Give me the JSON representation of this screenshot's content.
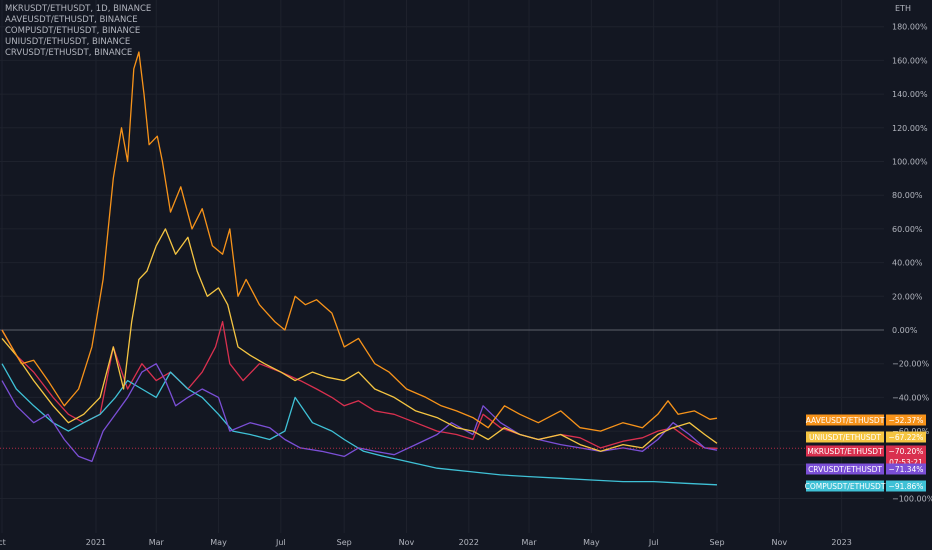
{
  "legend": {
    "lines": [
      "MKRUSDT/ETHUSDT, 1D, BINANCE",
      "AAVEUSDT/ETHUSDT, BINANCE",
      "COMPUSDT/ETHUSDT, BINANCE",
      "UNIUSDT/ETHUSDT, BINANCE",
      "CRVUSDT/ETHUSDT, BINANCE"
    ]
  },
  "chart_data": {
    "type": "line",
    "title": "MKRUSDT/ETHUSDT, 1D, BINANCE",
    "y_axis_unit": "ETH",
    "y_ticks": [
      "180.00%",
      "160.00%",
      "140.00%",
      "120.00%",
      "100.00%",
      "80.00%",
      "60.00%",
      "40.00%",
      "20.00%",
      "0.00%",
      "−20.00%",
      "−40.00%",
      "−60.00%",
      "−100.00%"
    ],
    "x_ticks": [
      "ct",
      "2021",
      "Mar",
      "May",
      "Jul",
      "Sep",
      "Nov",
      "2022",
      "Mar",
      "May",
      "Jul",
      "Sep",
      "Nov",
      "2023"
    ],
    "x_tick_dates": [
      "2020-10-01",
      "2021-01-01",
      "2021-03-01",
      "2021-05-01",
      "2021-07-01",
      "2021-09-01",
      "2021-11-01",
      "2022-01-01",
      "2022-03-01",
      "2022-05-01",
      "2022-07-01",
      "2022-09-01",
      "2022-11-01",
      "2023-01-01"
    ],
    "ylim": [
      -110,
      190
    ],
    "scale": "percent",
    "grid": true,
    "baseline": 0,
    "countdown": "07:53:21",
    "series": [
      {
        "name": "AAVEUSDT/ETHUSDT",
        "color": "#f7931a",
        "last_label": "−52.37%",
        "label_slot": 0,
        "points": [
          [
            "2020-10-01",
            0
          ],
          [
            "2020-10-20",
            -20
          ],
          [
            "2020-11-01",
            -18
          ],
          [
            "2020-11-15",
            -30
          ],
          [
            "2020-12-01",
            -45
          ],
          [
            "2020-12-15",
            -35
          ],
          [
            "2020-12-28",
            -10
          ],
          [
            "2021-01-08",
            30
          ],
          [
            "2021-01-18",
            90
          ],
          [
            "2021-01-26",
            120
          ],
          [
            "2021-02-01",
            100
          ],
          [
            "2021-02-07",
            155
          ],
          [
            "2021-02-12",
            165
          ],
          [
            "2021-02-17",
            140
          ],
          [
            "2021-02-22",
            110
          ],
          [
            "2021-03-02",
            115
          ],
          [
            "2021-03-07",
            100
          ],
          [
            "2021-03-15",
            70
          ],
          [
            "2021-03-25",
            85
          ],
          [
            "2021-04-05",
            60
          ],
          [
            "2021-04-15",
            72
          ],
          [
            "2021-04-25",
            50
          ],
          [
            "2021-05-05",
            45
          ],
          [
            "2021-05-12",
            60
          ],
          [
            "2021-05-20",
            20
          ],
          [
            "2021-05-28",
            30
          ],
          [
            "2021-06-10",
            15
          ],
          [
            "2021-06-25",
            5
          ],
          [
            "2021-07-05",
            0
          ],
          [
            "2021-07-15",
            20
          ],
          [
            "2021-07-25",
            15
          ],
          [
            "2021-08-05",
            18
          ],
          [
            "2021-08-20",
            10
          ],
          [
            "2021-09-01",
            -10
          ],
          [
            "2021-09-15",
            -5
          ],
          [
            "2021-10-01",
            -20
          ],
          [
            "2021-10-15",
            -25
          ],
          [
            "2021-11-01",
            -35
          ],
          [
            "2021-11-20",
            -40
          ],
          [
            "2021-12-05",
            -45
          ],
          [
            "2021-12-20",
            -48
          ],
          [
            "2022-01-05",
            -52
          ],
          [
            "2022-01-20",
            -58
          ],
          [
            "2022-02-05",
            -45
          ],
          [
            "2022-02-20",
            -50
          ],
          [
            "2022-03-10",
            -55
          ],
          [
            "2022-04-01",
            -48
          ],
          [
            "2022-04-20",
            -58
          ],
          [
            "2022-05-10",
            -60
          ],
          [
            "2022-06-01",
            -55
          ],
          [
            "2022-06-20",
            -58
          ],
          [
            "2022-07-05",
            -50
          ],
          [
            "2022-07-15",
            -42
          ],
          [
            "2022-07-25",
            -50
          ],
          [
            "2022-08-10",
            -48
          ],
          [
            "2022-08-25",
            -53
          ],
          [
            "2022-09-01",
            -52.37
          ]
        ]
      },
      {
        "name": "UNIUSDT/ETHUSDT",
        "color": "#f5c542",
        "last_label": "−67.22%",
        "label_slot": 1,
        "points": [
          [
            "2020-10-01",
            -5
          ],
          [
            "2020-10-15",
            -15
          ],
          [
            "2020-11-01",
            -30
          ],
          [
            "2020-11-20",
            -45
          ],
          [
            "2020-12-05",
            -55
          ],
          [
            "2020-12-20",
            -50
          ],
          [
            "2021-01-05",
            -40
          ],
          [
            "2021-01-18",
            -10
          ],
          [
            "2021-01-28",
            -35
          ],
          [
            "2021-02-05",
            5
          ],
          [
            "2021-02-12",
            30
          ],
          [
            "2021-02-20",
            35
          ],
          [
            "2021-03-01",
            50
          ],
          [
            "2021-03-10",
            60
          ],
          [
            "2021-03-20",
            45
          ],
          [
            "2021-04-01",
            55
          ],
          [
            "2021-04-10",
            35
          ],
          [
            "2021-04-20",
            20
          ],
          [
            "2021-05-01",
            25
          ],
          [
            "2021-05-10",
            15
          ],
          [
            "2021-05-20",
            -10
          ],
          [
            "2021-06-01",
            -15
          ],
          [
            "2021-06-15",
            -20
          ],
          [
            "2021-07-01",
            -25
          ],
          [
            "2021-07-15",
            -30
          ],
          [
            "2021-08-01",
            -25
          ],
          [
            "2021-08-15",
            -28
          ],
          [
            "2021-09-01",
            -30
          ],
          [
            "2021-09-15",
            -25
          ],
          [
            "2021-10-01",
            -35
          ],
          [
            "2021-10-20",
            -40
          ],
          [
            "2021-11-10",
            -48
          ],
          [
            "2021-12-01",
            -52
          ],
          [
            "2021-12-20",
            -58
          ],
          [
            "2022-01-05",
            -60
          ],
          [
            "2022-01-20",
            -65
          ],
          [
            "2022-02-05",
            -58
          ],
          [
            "2022-02-20",
            -62
          ],
          [
            "2022-03-10",
            -65
          ],
          [
            "2022-04-01",
            -62
          ],
          [
            "2022-04-20",
            -68
          ],
          [
            "2022-05-10",
            -72
          ],
          [
            "2022-06-01",
            -68
          ],
          [
            "2022-06-20",
            -70
          ],
          [
            "2022-07-05",
            -62
          ],
          [
            "2022-07-20",
            -58
          ],
          [
            "2022-08-05",
            -55
          ],
          [
            "2022-08-20",
            -62
          ],
          [
            "2022-09-01",
            -67.22
          ]
        ]
      },
      {
        "name": "MKRUSDT/ETHUSDT",
        "color": "#d9304f",
        "last_label": "−70.20%",
        "label_slot": 2,
        "points": [
          [
            "2020-10-01",
            0
          ],
          [
            "2020-10-15",
            -15
          ],
          [
            "2020-11-01",
            -25
          ],
          [
            "2020-11-20",
            -40
          ],
          [
            "2020-12-05",
            -50
          ],
          [
            "2020-12-20",
            -55
          ],
          [
            "2021-01-05",
            -50
          ],
          [
            "2021-01-18",
            -10
          ],
          [
            "2021-02-01",
            -35
          ],
          [
            "2021-02-15",
            -20
          ],
          [
            "2021-03-01",
            -30
          ],
          [
            "2021-03-15",
            -25
          ],
          [
            "2021-04-01",
            -35
          ],
          [
            "2021-04-15",
            -25
          ],
          [
            "2021-04-28",
            -10
          ],
          [
            "2021-05-05",
            5
          ],
          [
            "2021-05-12",
            -20
          ],
          [
            "2021-05-25",
            -30
          ],
          [
            "2021-06-10",
            -20
          ],
          [
            "2021-07-01",
            -25
          ],
          [
            "2021-07-20",
            -30
          ],
          [
            "2021-08-05",
            -35
          ],
          [
            "2021-08-20",
            -40
          ],
          [
            "2021-09-01",
            -45
          ],
          [
            "2021-09-15",
            -42
          ],
          [
            "2021-10-01",
            -48
          ],
          [
            "2021-10-20",
            -50
          ],
          [
            "2021-11-10",
            -55
          ],
          [
            "2021-12-01",
            -60
          ],
          [
            "2021-12-20",
            -62
          ],
          [
            "2022-01-05",
            -65
          ],
          [
            "2022-01-15",
            -50
          ],
          [
            "2022-02-01",
            -58
          ],
          [
            "2022-02-20",
            -62
          ],
          [
            "2022-03-10",
            -65
          ],
          [
            "2022-04-01",
            -62
          ],
          [
            "2022-04-20",
            -64
          ],
          [
            "2022-05-10",
            -70
          ],
          [
            "2022-06-01",
            -66
          ],
          [
            "2022-06-20",
            -64
          ],
          [
            "2022-07-05",
            -60
          ],
          [
            "2022-07-20",
            -58
          ],
          [
            "2022-08-05",
            -65
          ],
          [
            "2022-08-20",
            -70
          ],
          [
            "2022-09-01",
            -70.2
          ]
        ]
      },
      {
        "name": "CRVUSDT/ETHUSDT",
        "color": "#7b4fd6",
        "last_label": "−71.34%",
        "label_slot": 3,
        "points": [
          [
            "2020-10-01",
            -30
          ],
          [
            "2020-10-15",
            -45
          ],
          [
            "2020-11-01",
            -55
          ],
          [
            "2020-11-15",
            -50
          ],
          [
            "2020-12-01",
            -65
          ],
          [
            "2020-12-15",
            -75
          ],
          [
            "2020-12-28",
            -78
          ],
          [
            "2021-01-08",
            -60
          ],
          [
            "2021-01-20",
            -50
          ],
          [
            "2021-02-01",
            -40
          ],
          [
            "2021-02-15",
            -25
          ],
          [
            "2021-03-01",
            -20
          ],
          [
            "2021-03-10",
            -30
          ],
          [
            "2021-03-20",
            -45
          ],
          [
            "2021-04-01",
            -40
          ],
          [
            "2021-04-15",
            -35
          ],
          [
            "2021-05-01",
            -40
          ],
          [
            "2021-05-12",
            -60
          ],
          [
            "2021-06-01",
            -55
          ],
          [
            "2021-06-20",
            -58
          ],
          [
            "2021-07-05",
            -65
          ],
          [
            "2021-07-20",
            -70
          ],
          [
            "2021-08-10",
            -72
          ],
          [
            "2021-09-01",
            -75
          ],
          [
            "2021-09-15",
            -70
          ],
          [
            "2021-10-01",
            -72
          ],
          [
            "2021-10-20",
            -74
          ],
          [
            "2021-11-10",
            -68
          ],
          [
            "2021-12-01",
            -62
          ],
          [
            "2021-12-15",
            -55
          ],
          [
            "2022-01-05",
            -62
          ],
          [
            "2022-01-15",
            -45
          ],
          [
            "2022-02-01",
            -55
          ],
          [
            "2022-02-20",
            -62
          ],
          [
            "2022-03-10",
            -65
          ],
          [
            "2022-04-01",
            -68
          ],
          [
            "2022-04-20",
            -70
          ],
          [
            "2022-05-10",
            -72
          ],
          [
            "2022-06-01",
            -70
          ],
          [
            "2022-06-20",
            -72
          ],
          [
            "2022-07-05",
            -65
          ],
          [
            "2022-07-20",
            -55
          ],
          [
            "2022-08-05",
            -62
          ],
          [
            "2022-08-20",
            -70
          ],
          [
            "2022-09-01",
            -71.34
          ]
        ]
      },
      {
        "name": "COMPUSDT/ETHUSDT",
        "color": "#3fc1d6",
        "last_label": "−91.86%",
        "label_slot": 4,
        "points": [
          [
            "2020-10-01",
            -20
          ],
          [
            "2020-10-15",
            -35
          ],
          [
            "2020-11-01",
            -45
          ],
          [
            "2020-11-20",
            -55
          ],
          [
            "2020-12-05",
            -60
          ],
          [
            "2020-12-20",
            -55
          ],
          [
            "2021-01-05",
            -50
          ],
          [
            "2021-01-20",
            -40
          ],
          [
            "2021-02-01",
            -30
          ],
          [
            "2021-02-15",
            -35
          ],
          [
            "2021-03-01",
            -40
          ],
          [
            "2021-03-15",
            -25
          ],
          [
            "2021-04-01",
            -35
          ],
          [
            "2021-04-15",
            -40
          ],
          [
            "2021-05-01",
            -50
          ],
          [
            "2021-05-15",
            -60
          ],
          [
            "2021-06-01",
            -62
          ],
          [
            "2021-06-20",
            -65
          ],
          [
            "2021-07-05",
            -60
          ],
          [
            "2021-07-15",
            -40
          ],
          [
            "2021-08-01",
            -55
          ],
          [
            "2021-08-20",
            -60
          ],
          [
            "2021-09-01",
            -65
          ],
          [
            "2021-09-20",
            -72
          ],
          [
            "2021-10-10",
            -75
          ],
          [
            "2021-11-01",
            -78
          ],
          [
            "2021-12-01",
            -82
          ],
          [
            "2022-01-01",
            -84
          ],
          [
            "2022-02-01",
            -86
          ],
          [
            "2022-03-01",
            -87
          ],
          [
            "2022-04-01",
            -88
          ],
          [
            "2022-05-01",
            -89
          ],
          [
            "2022-06-01",
            -90
          ],
          [
            "2022-07-01",
            -90
          ],
          [
            "2022-08-01",
            -91
          ],
          [
            "2022-09-01",
            -91.86
          ]
        ]
      }
    ]
  }
}
